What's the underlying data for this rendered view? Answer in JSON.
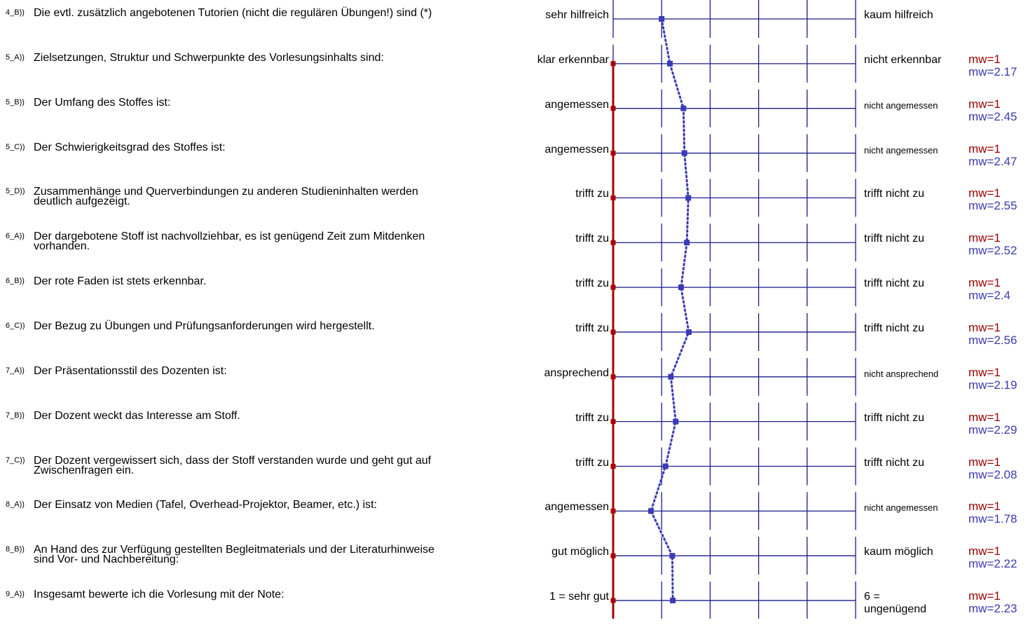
{
  "chart_data": {
    "type": "line",
    "x_scale_points": 6,
    "xlim": [
      1,
      6
    ],
    "series": [
      {
        "name": "mw=1",
        "color": "#aa0000"
      },
      {
        "name": "mw",
        "color": "#3a3ab8",
        "style": "dotted"
      }
    ],
    "items": [
      {
        "code": "4_B))",
        "question": "Die evtl. zusätzlich angebotenen Tutorien (nicht die regulären Übungen!) sind (*)",
        "left": "sehr hilfreich",
        "right": "kaum hilfreich",
        "mw1": null,
        "mw": null,
        "value": 2.0
      },
      {
        "code": "5_A))",
        "question": "Zielsetzungen, Struktur und Schwerpunkte des Vorlesungsinhalts sind:",
        "left": "klar erkennbar",
        "right": "nicht erkennbar",
        "mw1": "mw=1",
        "mw": "mw=2.17",
        "value": 2.17
      },
      {
        "code": "5_B))",
        "question": "Der Umfang des Stoffes ist:",
        "left": "angemessen",
        "right": "nicht angemessen",
        "mw1": "mw=1",
        "mw": "mw=2.45",
        "value": 2.45
      },
      {
        "code": "5_C))",
        "question": "Der Schwierigkeitsgrad des Stoffes ist:",
        "left": "angemessen",
        "right": "nicht angemessen",
        "mw1": "mw=1",
        "mw": "mw=2.47",
        "value": 2.47
      },
      {
        "code": "5_D))",
        "question": "Zusammenhänge und Querverbindungen zu anderen Studieninhalten werden\ndeutlich aufgezeigt.",
        "left": "trifft zu",
        "right": "trifft nicht zu",
        "mw1": "mw=1",
        "mw": "mw=2.55",
        "value": 2.55
      },
      {
        "code": "6_A))",
        "question": "Der dargebotene Stoff ist nachvollziehbar, es ist genügend Zeit zum Mitdenken\nvorhanden.",
        "left": "trifft zu",
        "right": "trifft nicht zu",
        "mw1": "mw=1",
        "mw": "mw=2.52",
        "value": 2.52
      },
      {
        "code": "6_B))",
        "question": "Der rote Faden ist stets erkennbar.",
        "left": "trifft zu",
        "right": "trifft nicht zu",
        "mw1": "mw=1",
        "mw": "mw=2.4",
        "value": 2.4
      },
      {
        "code": "6_C))",
        "question": "Der Bezug zu Übungen und Prüfungsanforderungen wird hergestellt.",
        "left": "trifft zu",
        "right": "trifft nicht zu",
        "mw1": "mw=1",
        "mw": "mw=2.56",
        "value": 2.56
      },
      {
        "code": "7_A))",
        "question": "Der Präsentationsstil des Dozenten ist:",
        "left": "ansprechend",
        "right": "nicht ansprechend",
        "mw1": "mw=1",
        "mw": "mw=2.19",
        "value": 2.19
      },
      {
        "code": "7_B))",
        "question": "Der Dozent weckt das Interesse am Stoff.",
        "left": "trifft zu",
        "right": "trifft nicht zu",
        "mw1": "mw=1",
        "mw": "mw=2.29",
        "value": 2.29
      },
      {
        "code": "7_C))",
        "question": "Der Dozent vergewissert sich, dass der Stoff verstanden wurde und geht gut auf\nZwischenfragen ein.",
        "left": "trifft zu",
        "right": "trifft nicht zu",
        "mw1": "mw=1",
        "mw": "mw=2.08",
        "value": 2.08
      },
      {
        "code": "8_A))",
        "question": "Der Einsatz von Medien (Tafel, Overhead-Projektor, Beamer, etc.) ist:",
        "left": "angemessen",
        "right": "nicht angemessen",
        "mw1": "mw=1",
        "mw": "mw=1.78",
        "value": 1.78
      },
      {
        "code": "8_B))",
        "question": "An Hand des zur Verfügung gestellten Begleitmaterials und der Literaturhinweise\nsind Vor- und Nachbereitung:",
        "left": "gut möglich",
        "right": "kaum möglich",
        "mw1": "mw=1",
        "mw": "mw=2.22",
        "value": 2.22
      },
      {
        "code": "9_A))",
        "question": "Insgesamt bewerte ich die Vorlesung mit der Note:",
        "left": "1 = sehr gut",
        "right": "6 =\nungenügend",
        "mw1": "mw=1",
        "mw": "mw=2.23",
        "value": 2.23
      }
    ]
  }
}
